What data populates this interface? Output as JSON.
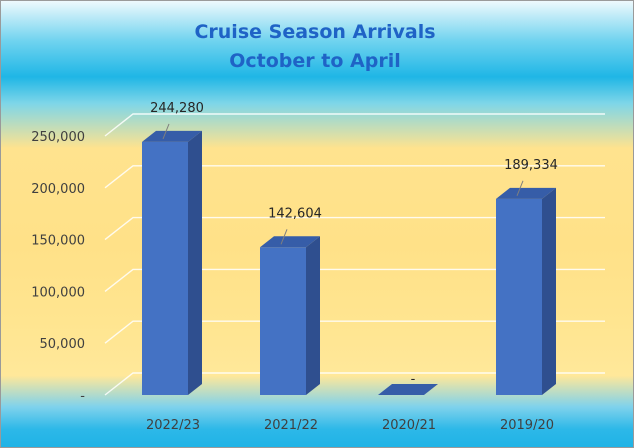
{
  "chart_data": {
    "type": "bar",
    "title": "Cruise Season Arrivals",
    "subtitle": "October to April",
    "categories": [
      "2022/23",
      "2021/22",
      "2020/21",
      "2019/20"
    ],
    "values": [
      244280,
      142604,
      0,
      189334
    ],
    "data_labels": [
      "244,280",
      "142,604",
      "-",
      "189,334"
    ],
    "y_ticks": [
      0,
      50000,
      100000,
      150000,
      200000,
      250000
    ],
    "y_tick_labels": [
      "-",
      "50,000",
      "100,000",
      "150,000",
      "200,000",
      "250,000"
    ],
    "ylim": [
      0,
      250000
    ],
    "grid": true,
    "style": "3d-column",
    "colors": {
      "bar_front": "#4472c4",
      "bar_side": "#2f4f8f",
      "bar_top": "#365da8"
    }
  }
}
